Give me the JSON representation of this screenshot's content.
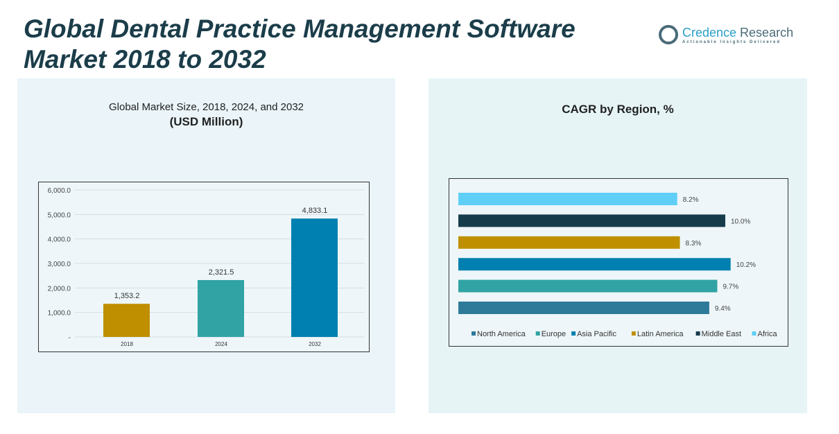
{
  "title": "Global Dental Practice Management Software Market 2018 to 2032",
  "logo": {
    "name1": "Credence",
    "name2": " Research",
    "tagline": "Actionable Insights Delivered"
  },
  "chart_data": [
    {
      "type": "bar",
      "title": "Global Market Size, 2018, 2024, and 2032",
      "subtitle": "(USD Million)",
      "categories": [
        "2018",
        "2024",
        "2032"
      ],
      "values": [
        1353.2,
        2321.5,
        4833.1
      ],
      "labels": [
        "1,353.2",
        "2,321.5",
        "4,833.1"
      ],
      "colors": [
        "#bf8f00",
        "#31a3a4",
        "#0080b0"
      ],
      "ylim": [
        0,
        6000
      ],
      "yticks": [
        "-",
        "1,000.0",
        "2,000.0",
        "3,000.0",
        "4,000.0",
        "5,000.0",
        "6,000.0"
      ],
      "grid": true
    },
    {
      "type": "bar",
      "orientation": "horizontal",
      "title": "CAGR by Region, %",
      "categories": [
        "Africa",
        "Middle East",
        "Latin America",
        "Asia Pacific",
        "Europe",
        "North America"
      ],
      "values": [
        8.2,
        10.0,
        8.3,
        10.2,
        9.7,
        9.4
      ],
      "labels": [
        "8.2%",
        "10.0%",
        "8.3%",
        "10.2%",
        "9.7%",
        "9.4%"
      ],
      "colors": [
        "#5fcff7",
        "#163c4c",
        "#bf8f00",
        "#0080b0",
        "#31a3a4",
        "#2e7a99"
      ],
      "legend": {
        "placement": "bottom",
        "entries": [
          "North America",
          "Europe",
          "Asia Pacific",
          "Latin America",
          "Middle East",
          "Africa"
        ],
        "colors": [
          "#2e7a99",
          "#31a3a4",
          "#0080b0",
          "#bf8f00",
          "#163c4c",
          "#5fcff7"
        ]
      }
    }
  ]
}
